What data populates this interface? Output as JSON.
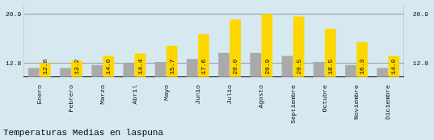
{
  "chart_data": {
    "type": "bar",
    "title": "Temperaturas Medias en laspuna",
    "categories": [
      "Enero",
      "Febrero",
      "Marzo",
      "Abril",
      "Mayo",
      "Junio",
      "Julio",
      "Agosto",
      "Septiembre",
      "Octubre",
      "Noviembre",
      "Diciembre"
    ],
    "series": [
      {
        "color": "#AAAAAA",
        "values": [
          12.0,
          12.0,
          12.5,
          12.8,
          13.0,
          13.5,
          14.5,
          14.5,
          14.0,
          13.0,
          12.5,
          12.0
        ]
      },
      {
        "color": "#FFD700",
        "values": [
          12.8,
          13.2,
          14.0,
          14.4,
          15.7,
          17.6,
          20.0,
          20.9,
          20.5,
          18.5,
          16.3,
          14.0
        ],
        "value_labels": [
          "12.8",
          "13.2",
          "14.0",
          "14.4",
          "15.7",
          "17.6",
          "20.0",
          "20.9",
          "20.5",
          "18.5",
          "16.3",
          "14.0"
        ],
        "data_labels": true
      }
    ],
    "ylim": [
      10.5,
      22.2
    ],
    "yticks": [
      12.8,
      20.9
    ],
    "y2lim": [
      10.5,
      22.2
    ],
    "y2ticks": [
      12.8,
      20.9
    ],
    "grid": true
  }
}
